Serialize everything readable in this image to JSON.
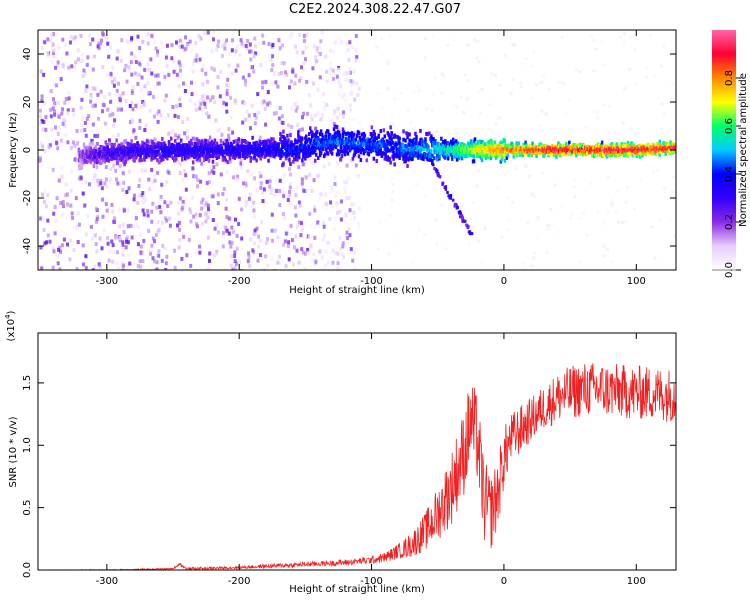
{
  "figure": {
    "title": "C2E2.2024.308.22.47.G07"
  },
  "chart_data": [
    {
      "type": "heatmap",
      "panel": "spectrogram",
      "xlabel": "Height of straight line (km)",
      "ylabel": "Frequency (Hz)",
      "xlim": [
        -352,
        130
      ],
      "ylim": [
        -50,
        50
      ],
      "x_ticks": [
        "-300",
        "-200",
        "-100",
        "0",
        "100"
      ],
      "x_tick_values": [
        -300,
        -200,
        -100,
        0,
        100
      ],
      "y_ticks": [
        "-40",
        "-20",
        "0",
        "20",
        "40"
      ],
      "y_tick_values": [
        -40,
        -20,
        0,
        20,
        40
      ],
      "colorbar": {
        "label": "Normalized spectral amplitude",
        "range": [
          0.0,
          1.0
        ],
        "ticks": [
          "0.0",
          "0.2",
          "0.4",
          "0.6",
          "0.8"
        ],
        "tick_values": [
          0.0,
          0.2,
          0.4,
          0.6,
          0.8
        ],
        "colormap": [
          "#ffffff",
          "#e6ccff",
          "#8a2be2",
          "#3300ff",
          "#0000ff",
          "#00ccff",
          "#00ff66",
          "#ffff00",
          "#ff8800",
          "#ff0033",
          "#ff66aa"
        ]
      },
      "ridge": {
        "description_values": "central frequency line near 0 Hz",
        "x": [
          -322,
          -300,
          -250,
          -200,
          -160,
          -140,
          -120,
          -100,
          -80,
          -60,
          -40,
          -20,
          0,
          20,
          40,
          60,
          80,
          100,
          130
        ],
        "y": [
          -3,
          -1,
          0,
          0,
          0.5,
          3,
          3.5,
          2,
          1,
          0,
          0,
          0,
          0,
          0,
          0,
          0,
          0,
          0,
          1
        ],
        "amplitude": [
          0.2,
          0.3,
          0.35,
          0.35,
          0.4,
          0.45,
          0.45,
          0.45,
          0.45,
          0.5,
          0.6,
          0.75,
          0.85,
          0.9,
          0.95,
          0.9,
          0.95,
          0.95,
          0.9
        ]
      },
      "noise_region_x": [
        -352,
        -150
      ],
      "colors": {
        "noise": "#8a2be2",
        "band": "#0000ff"
      }
    },
    {
      "type": "line",
      "panel": "snr",
      "xlabel": "Height of straight line (km)",
      "ylabel": "SNR (10 * v/v)",
      "multiplier_label": "(x10",
      "multiplier_exp": "4",
      "xlim": [
        -352,
        130
      ],
      "ylim": [
        0,
        1.9
      ],
      "x_ticks": [
        "-300",
        "-200",
        "-100",
        "0",
        "100"
      ],
      "x_tick_values": [
        -300,
        -200,
        -100,
        0,
        100
      ],
      "y_ticks": [
        "0.0",
        "0.5",
        "1.0",
        "1.5"
      ],
      "y_tick_values": [
        0.0,
        0.5,
        1.0,
        1.5
      ],
      "color": "#ee2222",
      "series": [
        {
          "x": [
            -352,
            -300,
            -250,
            -245,
            -240,
            -200,
            -180,
            -160,
            -140,
            -120,
            -100,
            -90,
            -80,
            -70,
            -60,
            -50,
            -40,
            -30,
            -25,
            -20,
            -15,
            -10,
            -5,
            0,
            5,
            10,
            20,
            30,
            40,
            50,
            60,
            70,
            80,
            90,
            100,
            110,
            120,
            130
          ],
          "y": [
            0.0,
            0.0,
            0.01,
            0.05,
            0.01,
            0.02,
            0.03,
            0.04,
            0.05,
            0.06,
            0.08,
            0.1,
            0.15,
            0.2,
            0.3,
            0.45,
            0.65,
            0.95,
            1.2,
            1.05,
            0.55,
            0.45,
            0.6,
            0.9,
            1.05,
            1.1,
            1.2,
            1.3,
            1.38,
            1.42,
            1.45,
            1.45,
            1.44,
            1.43,
            1.42,
            1.42,
            1.41,
            1.4
          ],
          "noise_spread": [
            0.0,
            0.005,
            0.005,
            0.01,
            0.01,
            0.01,
            0.015,
            0.02,
            0.02,
            0.025,
            0.03,
            0.04,
            0.06,
            0.1,
            0.15,
            0.22,
            0.3,
            0.35,
            0.35,
            0.35,
            0.35,
            0.3,
            0.3,
            0.25,
            0.2,
            0.2,
            0.18,
            0.18,
            0.2,
            0.22,
            0.22,
            0.22,
            0.22,
            0.22,
            0.22,
            0.22,
            0.22,
            0.22
          ]
        }
      ]
    }
  ]
}
